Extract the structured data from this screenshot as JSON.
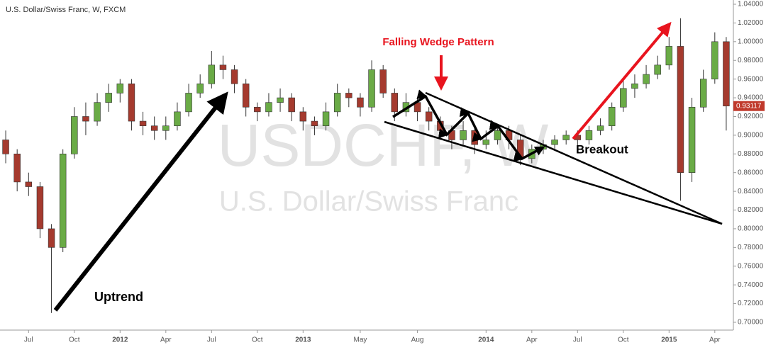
{
  "chart_data": {
    "type": "candlestick",
    "title": "U.S. Dollar/Swiss Franc, W, FXCM",
    "watermark": "USDCHF, W",
    "watermark_subtitle": "U.S. Dollar/Swiss Franc",
    "annotations": {
      "pattern": "Falling Wedge Pattern",
      "breakout": "Breakout",
      "uptrend": "Uptrend"
    },
    "categories": [
      null,
      null,
      "Jul",
      null,
      null,
      null,
      "Oct",
      null,
      null,
      null,
      "2012",
      null,
      null,
      null,
      "Apr",
      null,
      null,
      null,
      "Jul",
      null,
      null,
      null,
      "Oct",
      null,
      null,
      null,
      "2013",
      null,
      null,
      null,
      null,
      "May",
      null,
      null,
      null,
      null,
      "Aug",
      null,
      null,
      null,
      null,
      null,
      "2014",
      null,
      null,
      null,
      "Apr",
      null,
      null,
      null,
      "Jul",
      null,
      null,
      null,
      "Oct",
      null,
      null,
      null,
      "2015",
      null,
      null,
      null,
      "Apr",
      null
    ],
    "open": [
      0.895,
      0.88,
      0.85,
      0.845,
      0.8,
      0.78,
      0.88,
      0.92,
      0.915,
      0.935,
      0.945,
      0.955,
      0.915,
      0.91,
      0.905,
      0.91,
      0.925,
      0.945,
      0.955,
      0.975,
      0.97,
      0.955,
      0.93,
      0.925,
      0.935,
      0.94,
      0.925,
      0.915,
      0.91,
      0.925,
      0.945,
      0.94,
      0.93,
      0.97,
      0.945,
      0.925,
      0.935,
      0.925,
      0.915,
      0.905,
      0.895,
      0.905,
      0.89,
      0.895,
      0.905,
      0.895,
      0.875,
      0.885,
      0.89,
      0.895,
      0.9,
      0.895,
      0.905,
      0.91,
      0.93,
      0.95,
      0.955,
      0.965,
      0.975,
      0.995,
      0.86,
      0.93,
      0.96,
      1.0
    ],
    "high": [
      0.905,
      0.885,
      0.86,
      0.85,
      0.805,
      0.885,
      0.93,
      0.935,
      0.945,
      0.955,
      0.96,
      0.96,
      0.925,
      0.92,
      0.92,
      0.935,
      0.955,
      0.965,
      0.99,
      0.985,
      0.975,
      0.96,
      0.935,
      0.945,
      0.95,
      0.945,
      0.93,
      0.92,
      0.935,
      0.955,
      0.95,
      0.945,
      0.98,
      0.975,
      0.95,
      0.945,
      0.94,
      0.93,
      0.92,
      0.91,
      0.915,
      0.91,
      0.905,
      0.912,
      0.91,
      0.9,
      0.89,
      0.895,
      0.9,
      0.905,
      0.905,
      0.91,
      0.918,
      0.935,
      0.96,
      0.965,
      0.975,
      0.985,
      1.005,
      1.025,
      0.94,
      0.97,
      1.01,
      1.005
    ],
    "low": [
      0.87,
      0.84,
      0.835,
      0.79,
      0.71,
      0.775,
      0.875,
      0.9,
      0.91,
      0.925,
      0.935,
      0.905,
      0.9,
      0.895,
      0.895,
      0.905,
      0.92,
      0.94,
      0.95,
      0.96,
      0.945,
      0.92,
      0.915,
      0.92,
      0.925,
      0.915,
      0.905,
      0.9,
      0.905,
      0.92,
      0.93,
      0.92,
      0.925,
      0.94,
      0.915,
      0.92,
      0.915,
      0.905,
      0.895,
      0.885,
      0.89,
      0.88,
      0.885,
      0.89,
      0.885,
      0.868,
      0.87,
      0.88,
      0.885,
      0.89,
      0.888,
      0.89,
      0.9,
      0.905,
      0.925,
      0.94,
      0.95,
      0.96,
      0.97,
      0.83,
      0.85,
      0.925,
      0.955,
      0.905
    ],
    "close": [
      0.88,
      0.85,
      0.845,
      0.8,
      0.78,
      0.88,
      0.92,
      0.915,
      0.935,
      0.945,
      0.955,
      0.915,
      0.91,
      0.905,
      0.91,
      0.925,
      0.945,
      0.955,
      0.975,
      0.97,
      0.955,
      0.93,
      0.925,
      0.935,
      0.94,
      0.925,
      0.915,
      0.91,
      0.925,
      0.945,
      0.94,
      0.93,
      0.97,
      0.945,
      0.925,
      0.935,
      0.925,
      0.915,
      0.905,
      0.895,
      0.905,
      0.89,
      0.895,
      0.905,
      0.895,
      0.875,
      0.885,
      0.89,
      0.895,
      0.9,
      0.895,
      0.905,
      0.91,
      0.93,
      0.95,
      0.955,
      0.965,
      0.975,
      0.995,
      0.86,
      0.93,
      0.96,
      1.0,
      0.93117
    ],
    "last_price": 0.93117,
    "up_color": "#6aab46",
    "down_color": "#a53a2e",
    "last_price_color": "#c0392b",
    "ylim": [
      0.7,
      1.04
    ],
    "yticks": [
      {
        "value": 0.7,
        "label": "0.70000"
      },
      {
        "value": 0.72,
        "label": "0.72000"
      },
      {
        "value": 0.74,
        "label": "0.74000"
      },
      {
        "value": 0.76,
        "label": "0.76000"
      },
      {
        "value": 0.78,
        "label": "0.78000"
      },
      {
        "value": 0.8,
        "label": "0.80000"
      },
      {
        "value": 0.82,
        "label": "0.82000"
      },
      {
        "value": 0.84,
        "label": "0.84000"
      },
      {
        "value": 0.86,
        "label": "0.86000"
      },
      {
        "value": 0.88,
        "label": "0.88000"
      },
      {
        "value": 0.9,
        "label": "0.90000"
      },
      {
        "value": 0.92,
        "label": "0.92000"
      },
      {
        "value": 0.94,
        "label": "0.94000"
      },
      {
        "value": 0.96,
        "label": "0.96000"
      },
      {
        "value": 0.98,
        "label": "0.98000"
      },
      {
        "value": 1.0,
        "label": "1.00000"
      },
      {
        "value": 1.02,
        "label": "1.02000"
      },
      {
        "value": 1.04,
        "label": "1.04000"
      }
    ],
    "grid": false
  }
}
